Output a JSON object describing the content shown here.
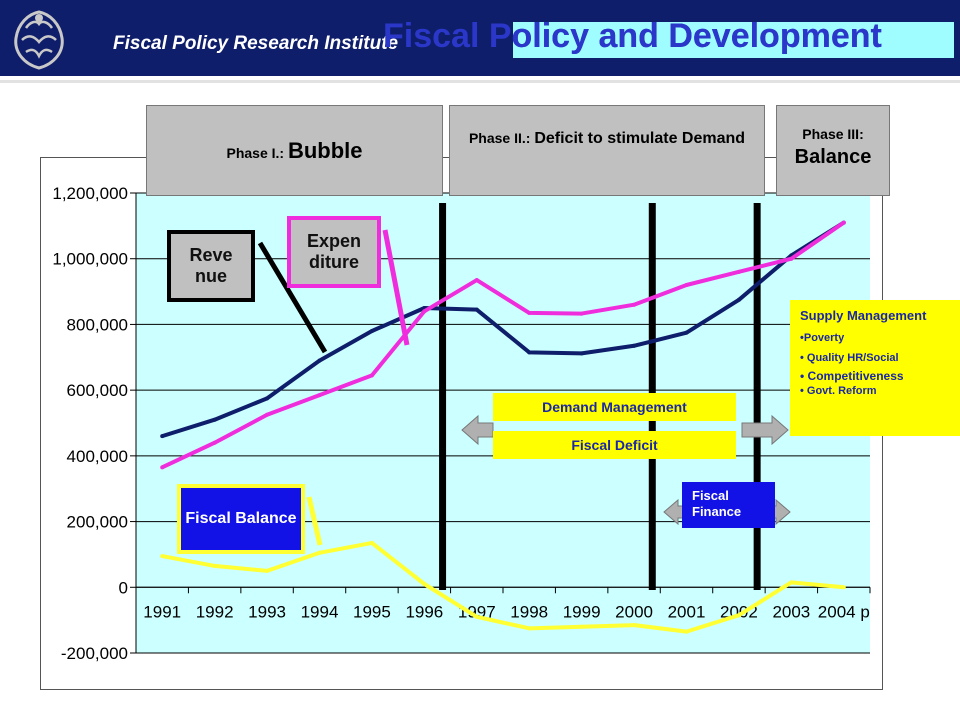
{
  "header": {
    "institute": "Fiscal Policy Research Institute",
    "title": "Fiscal Policy and Development",
    "colors": {
      "bar": "#0f1e6b",
      "title_text": "#2a37c9",
      "title_bg": "#9ffcff"
    },
    "logo_icon": "garuda-emblem-icon"
  },
  "phases": [
    {
      "prefix": "Phase I.: ",
      "name": "Bubble"
    },
    {
      "prefix": "Phase II.: ",
      "name": "Deficit to stimulate Demand"
    },
    {
      "prefix": "Phase III:",
      "name": "Balance"
    }
  ],
  "series_labels": {
    "revenue": "Reve nue",
    "expenditure": "Expen diture",
    "fiscal_balance": "Fiscal Balance"
  },
  "annotations": {
    "demand_management": "Demand Management",
    "fiscal_deficit": "Fiscal Deficit",
    "fiscal_finance": "Fiscal Finance",
    "supply_title": "Supply Management",
    "supply_items": [
      "•Poverty",
      "• Quality HR/Social",
      "• Competitiveness",
      "• Govt. Reform"
    ]
  },
  "chart_data": {
    "type": "line",
    "categories": [
      "1991",
      "1992",
      "1993",
      "1994",
      "1995",
      "1996",
      "1997",
      "1998",
      "1999",
      "2000",
      "2001",
      "2002",
      "2003",
      "2004 p"
    ],
    "ylim": [
      -200000,
      1200000
    ],
    "yticks": [
      "1,200,000",
      "1,000,000",
      "800,000",
      "600,000",
      "400,000",
      "200,000",
      "0",
      "-200,000"
    ],
    "ytick_values": [
      1200000,
      1000000,
      800000,
      600000,
      400000,
      200000,
      0,
      -200000
    ],
    "grid": true,
    "plot_bg": "#ccffff",
    "series": [
      {
        "name": "Revenue",
        "color": "#0f1e6b",
        "values": [
          460000,
          510000,
          575000,
          690000,
          780000,
          850000,
          845000,
          715000,
          712000,
          735000,
          775000,
          875000,
          1010000,
          1110000
        ]
      },
      {
        "name": "Expenditure",
        "color": "#f02ddc",
        "values": [
          365000,
          440000,
          525000,
          585000,
          645000,
          840000,
          935000,
          835000,
          833000,
          860000,
          920000,
          960000,
          1000000,
          1110000
        ]
      },
      {
        "name": "Fiscal Balance",
        "color": "#ffff33",
        "values": [
          95000,
          65000,
          50000,
          105000,
          135000,
          10000,
          -90000,
          -125000,
          -120000,
          -115000,
          -135000,
          -85000,
          15000,
          0
        ]
      }
    ],
    "phase_dividers": [
      "1997",
      "2001",
      "2003"
    ]
  }
}
